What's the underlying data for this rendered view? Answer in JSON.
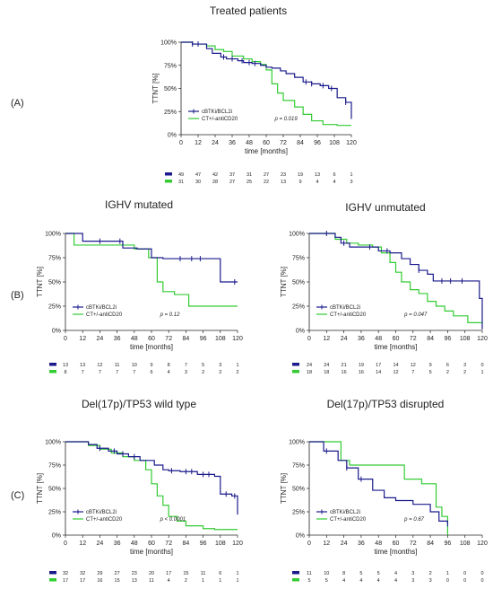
{
  "colors": {
    "blue": "#1a1a8c",
    "green": "#33cc33",
    "axis": "#222222"
  },
  "chart_data": [
    {
      "type": "line",
      "panel_label": "(A)",
      "title": "Treated patients",
      "xlabel": "time [months]",
      "ylabel": "TTNT [%]",
      "xlim": [
        0,
        120
      ],
      "ylim": [
        0,
        100
      ],
      "xticks": [
        "0",
        "12",
        "24",
        "36",
        "48",
        "60",
        "72",
        "84",
        "96",
        "108",
        "120"
      ],
      "yticks": [
        "0%",
        "25%",
        "50%",
        "75%",
        "100%"
      ],
      "pvalue": "p = 0.019",
      "legend_position": "bottom-left",
      "series": [
        {
          "name": "cBTKi/BCL2i",
          "color": "#1a1a8c",
          "x": [
            0,
            8,
            18,
            22,
            28,
            32,
            40,
            44,
            50,
            56,
            60,
            64,
            70,
            74,
            80,
            86,
            92,
            98,
            104,
            110,
            116,
            120
          ],
          "y": [
            100,
            98,
            93,
            88,
            84,
            82,
            80,
            78,
            77,
            75,
            73,
            72,
            69,
            66,
            62,
            57,
            55,
            53,
            50,
            40,
            35,
            17
          ],
          "censor_x": [
            8,
            12,
            30,
            36,
            43,
            48,
            52,
            88,
            92,
            100,
            106,
            116
          ]
        },
        {
          "name": "CT+/-antiCD20",
          "color": "#33cc33",
          "x": [
            0,
            8,
            18,
            24,
            30,
            36,
            44,
            50,
            56,
            60,
            64,
            68,
            72,
            80,
            86,
            92,
            100,
            110,
            120
          ],
          "y": [
            100,
            98,
            96,
            92,
            90,
            85,
            82,
            79,
            76,
            70,
            55,
            45,
            37,
            30,
            22,
            15,
            11,
            10,
            10
          ],
          "censor_x": []
        }
      ],
      "risk_table": {
        "cBTKi/BCL2i": [
          "49",
          "47",
          "42",
          "37",
          "31",
          "27",
          "23",
          "19",
          "13",
          "6",
          "1"
        ],
        "CT+/-antiCD20": [
          "31",
          "30",
          "28",
          "27",
          "25",
          "22",
          "13",
          "9",
          "4",
          "4",
          "3"
        ]
      }
    },
    {
      "type": "line",
      "panel_label": "(B)",
      "title": "IGHV mutated",
      "xlabel": "time [months]",
      "ylabel": "TTNT [%]",
      "xlim": [
        0,
        120
      ],
      "ylim": [
        0,
        100
      ],
      "xticks": [
        "0",
        "12",
        "24",
        "36",
        "48",
        "60",
        "72",
        "84",
        "96",
        "108",
        "120"
      ],
      "yticks": [
        "0%",
        "25%",
        "50%",
        "75%",
        "100%"
      ],
      "pvalue": "p = 0.12",
      "legend_position": "bottom-left",
      "series": [
        {
          "name": "cBTKi/BCL2i",
          "color": "#1a1a8c",
          "x": [
            0,
            12,
            40,
            50,
            60,
            68,
            108,
            120
          ],
          "y": [
            100,
            92,
            85,
            84,
            75,
            74,
            50,
            50
          ],
          "censor_x": [
            24,
            38,
            80,
            88,
            94,
            118
          ]
        },
        {
          "name": "CT+/-antiCD20",
          "color": "#33cc33",
          "x": [
            0,
            6,
            48,
            58,
            64,
            68,
            76,
            86,
            120
          ],
          "y": [
            100,
            88,
            84,
            75,
            50,
            40,
            37,
            25,
            25
          ],
          "censor_x": []
        }
      ],
      "risk_table": {
        "cBTKi/BCL2i": [
          "13",
          "13",
          "12",
          "11",
          "10",
          "9",
          "8",
          "7",
          "5",
          "3",
          "1"
        ],
        "CT+/-antiCD20": [
          "8",
          "7",
          "7",
          "7",
          "7",
          "6",
          "4",
          "3",
          "2",
          "2",
          "2"
        ]
      }
    },
    {
      "type": "line",
      "panel_label": "",
      "title": "IGHV unmutated",
      "xlabel": "time [months]",
      "ylabel": "TTNT [%]",
      "xlim": [
        0,
        120
      ],
      "ylim": [
        0,
        100
      ],
      "xticks": [
        "0",
        "12",
        "24",
        "36",
        "48",
        "60",
        "72",
        "84",
        "96",
        "108",
        "120"
      ],
      "yticks": [
        "0%",
        "25%",
        "50%",
        "75%",
        "100%"
      ],
      "pvalue": "p = 0.047",
      "legend_position": "bottom-left",
      "series": [
        {
          "name": "cBTKi/BCL2i",
          "color": "#1a1a8c",
          "x": [
            0,
            18,
            22,
            28,
            36,
            48,
            56,
            64,
            70,
            76,
            82,
            86,
            100,
            110,
            118,
            120
          ],
          "y": [
            100,
            96,
            90,
            86,
            86,
            82,
            80,
            74,
            68,
            62,
            58,
            51,
            51,
            51,
            33,
            1
          ],
          "censor_x": [
            12,
            24,
            42,
            54,
            76,
            92,
            98,
            106
          ]
        },
        {
          "name": "CT+/-antiCD20",
          "color": "#33cc33",
          "x": [
            0,
            18,
            26,
            34,
            44,
            50,
            56,
            60,
            64,
            70,
            76,
            82,
            88,
            94,
            100,
            110,
            120
          ],
          "y": [
            100,
            94,
            90,
            88,
            86,
            80,
            70,
            60,
            50,
            42,
            38,
            30,
            25,
            20,
            15,
            8,
            8
          ],
          "censor_x": []
        }
      ],
      "risk_table": {
        "cBTKi/BCL2i": [
          "24",
          "24",
          "21",
          "19",
          "17",
          "14",
          "12",
          "9",
          "6",
          "3",
          "0"
        ],
        "CT+/-antiCD20": [
          "18",
          "18",
          "16",
          "16",
          "14",
          "12",
          "7",
          "5",
          "2",
          "2",
          "1"
        ]
      }
    },
    {
      "type": "line",
      "panel_label": "(C)",
      "title": "Del(17p)/TP53 wild type",
      "xlabel": "time [months]",
      "ylabel": "TTNT [%]",
      "xlim": [
        0,
        120
      ],
      "ylim": [
        0,
        100
      ],
      "xticks": [
        "0",
        "12",
        "24",
        "36",
        "48",
        "60",
        "72",
        "84",
        "96",
        "108",
        "120"
      ],
      "yticks": [
        "0%",
        "25%",
        "50%",
        "75%",
        "100%"
      ],
      "pvalue": "p < 0.0001",
      "legend_position": "bottom-left",
      "series": [
        {
          "name": "cBTKi/BCL2i",
          "color": "#1a1a8c",
          "x": [
            0,
            16,
            22,
            30,
            36,
            44,
            52,
            62,
            68,
            72,
            80,
            92,
            104,
            108,
            116,
            120
          ],
          "y": [
            100,
            97,
            93,
            90,
            87,
            84,
            80,
            75,
            70,
            69,
            68,
            65,
            63,
            44,
            42,
            22
          ],
          "censor_x": [
            24,
            34,
            40,
            48,
            74,
            84,
            88,
            96,
            100,
            112,
            118
          ]
        },
        {
          "name": "CT+/-antiCD20",
          "color": "#33cc33",
          "x": [
            0,
            16,
            24,
            32,
            40,
            48,
            56,
            60,
            64,
            68,
            72,
            78,
            84,
            96,
            104,
            120
          ],
          "y": [
            100,
            96,
            92,
            88,
            84,
            80,
            70,
            55,
            42,
            32,
            20,
            15,
            10,
            7,
            6,
            6
          ],
          "censor_x": []
        }
      ],
      "risk_table": {
        "cBTKi/BCL2i": [
          "32",
          "32",
          "29",
          "27",
          "23",
          "20",
          "17",
          "15",
          "11",
          "6",
          "1"
        ],
        "CT+/-antiCD20": [
          "17",
          "17",
          "16",
          "15",
          "13",
          "11",
          "4",
          "2",
          "1",
          "1",
          "1"
        ]
      }
    },
    {
      "type": "line",
      "panel_label": "",
      "title": "Del(17p)/TP53 disrupted",
      "xlabel": "time [months]",
      "ylabel": "TTNT [%]",
      "xlim": [
        0,
        120
      ],
      "ylim": [
        0,
        100
      ],
      "xticks": [
        "0",
        "12",
        "24",
        "36",
        "48",
        "60",
        "72",
        "84",
        "96",
        "108",
        "120"
      ],
      "yticks": [
        "0%",
        "25%",
        "50%",
        "75%",
        "100%"
      ],
      "pvalue": "p = 0.67",
      "legend_position": "bottom-left",
      "series": [
        {
          "name": "cBTKi/BCL2i",
          "color": "#1a1a8c",
          "x": [
            0,
            10,
            20,
            26,
            34,
            44,
            52,
            60,
            72,
            84,
            90,
            96
          ],
          "y": [
            100,
            90,
            80,
            72,
            60,
            48,
            40,
            37,
            33,
            25,
            15,
            12
          ],
          "censor_x": [
            12,
            26,
            36,
            96
          ]
        },
        {
          "name": "CT+/-antiCD20",
          "color": "#33cc33",
          "x": [
            0,
            6,
            22,
            28,
            66,
            78,
            88,
            92,
            96
          ],
          "y": [
            100,
            100,
            80,
            75,
            60,
            55,
            30,
            20,
            0
          ],
          "censor_x": []
        }
      ],
      "risk_table": {
        "cBTKi/BCL2i": [
          "11",
          "10",
          "8",
          "5",
          "5",
          "4",
          "3",
          "2",
          "1",
          "0",
          "0"
        ],
        "CT+/-antiCD20": [
          "5",
          "5",
          "4",
          "4",
          "4",
          "4",
          "3",
          "3",
          "0",
          "0",
          "0"
        ]
      }
    }
  ]
}
